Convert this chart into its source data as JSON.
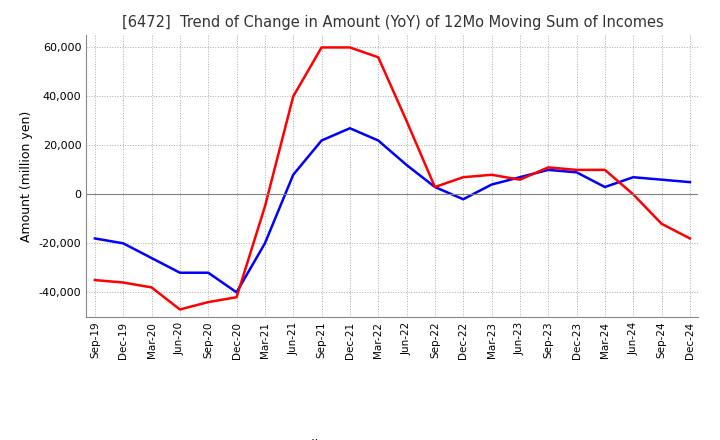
{
  "title": "[6472]  Trend of Change in Amount (YoY) of 12Mo Moving Sum of Incomes",
  "ylabel": "Amount (million yen)",
  "ylim": [
    -50000,
    65000
  ],
  "yticks": [
    -40000,
    -20000,
    0,
    20000,
    40000,
    60000
  ],
  "x_labels": [
    "Sep-19",
    "Dec-19",
    "Mar-20",
    "Jun-20",
    "Sep-20",
    "Dec-20",
    "Mar-21",
    "Jun-21",
    "Sep-21",
    "Dec-21",
    "Mar-22",
    "Jun-22",
    "Sep-22",
    "Dec-22",
    "Mar-23",
    "Jun-23",
    "Sep-23",
    "Dec-23",
    "Mar-24",
    "Jun-24",
    "Sep-24",
    "Dec-24"
  ],
  "ordinary_income": [
    -18000,
    -20000,
    -26000,
    -32000,
    -32000,
    -40000,
    -20000,
    8000,
    22000,
    27000,
    22000,
    12000,
    3000,
    -2000,
    4000,
    7000,
    10000,
    9000,
    3000,
    7000,
    6000,
    5000
  ],
  "net_income": [
    -35000,
    -36000,
    -38000,
    -47000,
    -44000,
    -42000,
    -5000,
    40000,
    60000,
    60000,
    56000,
    30000,
    3000,
    7000,
    8000,
    6000,
    11000,
    10000,
    10000,
    0,
    -12000,
    -18000
  ],
  "ordinary_color": "#0000ff",
  "net_color": "#ff0000",
  "grid_color": "#aaaaaa",
  "background_color": "#ffffff",
  "title_color": "#333333"
}
